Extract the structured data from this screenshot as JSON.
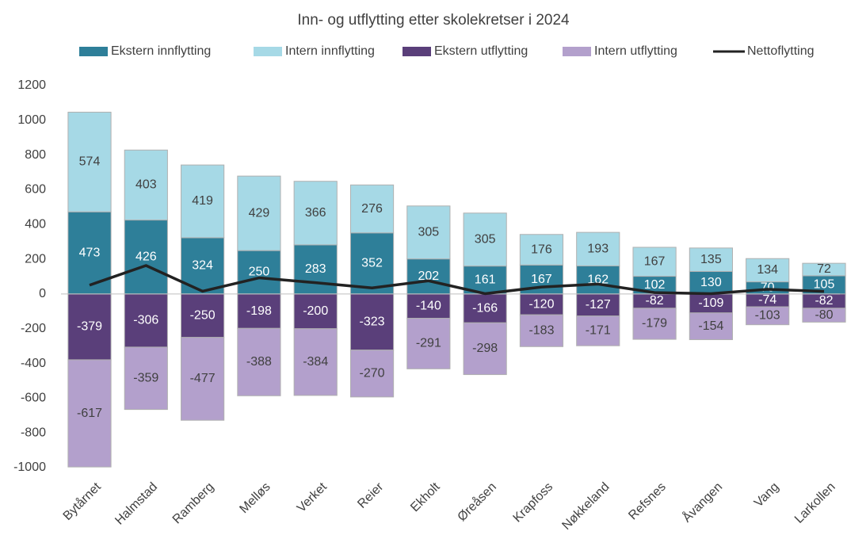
{
  "chart_data": {
    "type": "bar",
    "stacked": true,
    "title": "Inn- og utflytting etter skolekretser i 2024",
    "categories": [
      "Bytårnet",
      "Halmstad",
      "Ramberg",
      "Melløs",
      "Verket",
      "Reier",
      "Ekholt",
      "Øreåsen",
      "Krapfoss",
      "Nøkkeland",
      "Refsnes",
      "Åvangen",
      "Vang",
      "Larkollen"
    ],
    "series": [
      {
        "name": "Ekstern innflytting",
        "color": "#2e7f99",
        "values": [
          473,
          426,
          324,
          250,
          283,
          352,
          202,
          161,
          167,
          162,
          102,
          130,
          70,
          105
        ]
      },
      {
        "name": "Intern innflytting",
        "color": "#a6d9e6",
        "values": [
          574,
          403,
          419,
          429,
          366,
          276,
          305,
          305,
          176,
          193,
          167,
          135,
          134,
          72
        ]
      },
      {
        "name": "Ekstern utflytting",
        "color": "#5a3f7a",
        "values": [
          -379,
          -306,
          -250,
          -198,
          -200,
          -323,
          -140,
          -166,
          -120,
          -127,
          -82,
          -109,
          -74,
          -82
        ]
      },
      {
        "name": "Intern utflytting",
        "color": "#b3a0cc",
        "values": [
          -617,
          -359,
          -477,
          -388,
          -384,
          -270,
          -291,
          -298,
          -183,
          -171,
          -179,
          -154,
          -103,
          -80
        ]
      },
      {
        "name": "Nettoflytting",
        "type": "line",
        "color": "#222222",
        "values": [
          51,
          164,
          16,
          93,
          65,
          35,
          76,
          2,
          40,
          57,
          8,
          2,
          27,
          15
        ]
      }
    ],
    "ylim": [
      -1000,
      1200
    ],
    "yticks": [
      -1000,
      -800,
      -600,
      -400,
      -200,
      0,
      200,
      400,
      600,
      800,
      1000,
      1200
    ],
    "legend": "top",
    "grid": false
  }
}
